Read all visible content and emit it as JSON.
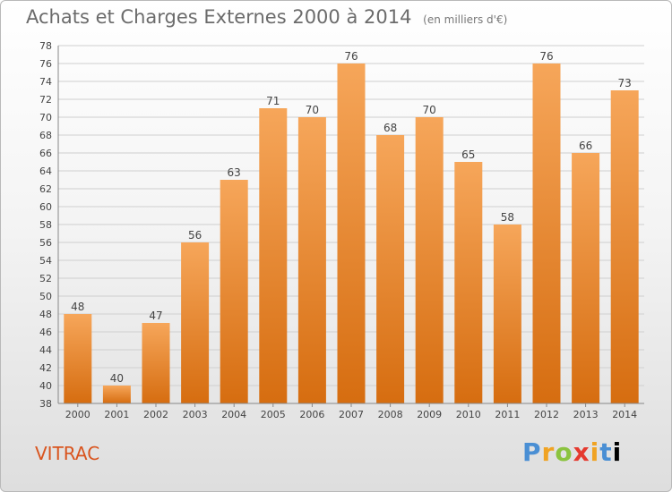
{
  "header": {
    "title": "Achats et Charges Externes 2000 à 2014",
    "subtitle": "(en milliers d'€)"
  },
  "footer": {
    "commune": "VITRAC",
    "brand": "Proxiti"
  },
  "colors": {
    "bar_light": "#f6a65a",
    "bar_dark": "#d66d10",
    "grid": "#cfcfcf",
    "text": "#444444"
  },
  "chart_data": {
    "type": "bar",
    "categories": [
      "2000",
      "2001",
      "2002",
      "2003",
      "2004",
      "2005",
      "2006",
      "2007",
      "2008",
      "2009",
      "2010",
      "2011",
      "2012",
      "2013",
      "2014"
    ],
    "values": [
      48,
      40,
      47,
      56,
      63,
      71,
      70,
      76,
      68,
      70,
      65,
      58,
      76,
      66,
      73
    ],
    "title": "Achats et Charges Externes 2000 à 2014",
    "subtitle": "(en milliers d'€)",
    "xlabel": "",
    "ylabel": "",
    "ylim": [
      38,
      78
    ],
    "yticks": [
      38,
      40,
      42,
      44,
      46,
      48,
      50,
      52,
      54,
      56,
      58,
      60,
      62,
      64,
      66,
      68,
      70,
      72,
      74,
      76,
      78
    ],
    "grid": true,
    "data_labels": true
  }
}
